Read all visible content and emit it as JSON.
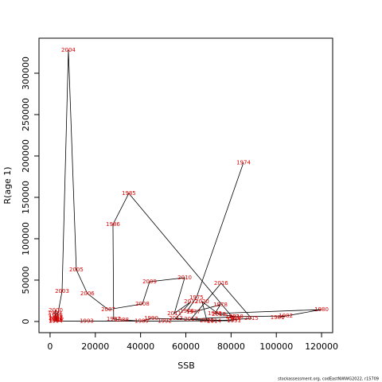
{
  "chart_data": {
    "type": "scatter",
    "x_label": "SSB",
    "y_label": "R(age 1)",
    "footnote": "stockassessment.org, codEastNWWG2022, r15709",
    "labels": [
      "1974",
      "1975",
      "1976",
      "1977",
      "1978",
      "1979",
      "1980",
      "1981",
      "1982",
      "1983",
      "1984",
      "1985",
      "1986",
      "1987",
      "1988",
      "1989",
      "1990",
      "1991",
      "1992",
      "1993",
      "1994",
      "1995",
      "1996",
      "1997",
      "1998",
      "1999",
      "2000",
      "2001",
      "2002",
      "2003",
      "2004",
      "2005",
      "2006",
      "2007",
      "2008",
      "2009",
      "2010",
      "2011",
      "2012",
      "2013",
      "2014",
      "2015",
      "2016",
      "2017",
      "2018",
      "2019",
      "2020",
      "2021"
    ],
    "x": [
      85500,
      64700,
      60500,
      63300,
      75300,
      72800,
      120000,
      100500,
      104200,
      80600,
      81300,
      34800,
      27800,
      28100,
      31700,
      40500,
      44700,
      81300,
      50700,
      16200,
      2500,
      2500,
      2500,
      2500,
      2500,
      2000,
      2500,
      2500,
      3000,
      5300,
      8100,
      11600,
      16500,
      25700,
      40800,
      44000,
      59500,
      54900,
      62300,
      55600,
      72500,
      89000,
      75600,
      62300,
      82300,
      74600,
      67200,
      69300
    ],
    "values": [
      192000,
      29000,
      12500,
      11500,
      20200,
      9600,
      14400,
      4800,
      6700,
      5800,
      2900,
      154800,
      117300,
      2900,
      1900,
      500,
      3800,
      1000,
      500,
      500,
      500,
      1500,
      3000,
      5000,
      7000,
      10000,
      13500,
      4000,
      2500,
      36500,
      328000,
      62500,
      33700,
      14400,
      21200,
      48100,
      52900,
      9600,
      24000,
      3800,
      500,
      3800,
      46200,
      2900,
      5800,
      8700,
      24000,
      1000
    ],
    "xlim": [
      -4900,
      124900
    ],
    "ylim": [
      -13500,
      342300
    ],
    "xticks": [
      0,
      20000,
      40000,
      60000,
      80000,
      100000,
      120000
    ],
    "yticks": [
      0,
      50000,
      100000,
      150000,
      200000,
      250000,
      300000
    ],
    "line_color": "#000000",
    "label_color": "#e00000"
  }
}
